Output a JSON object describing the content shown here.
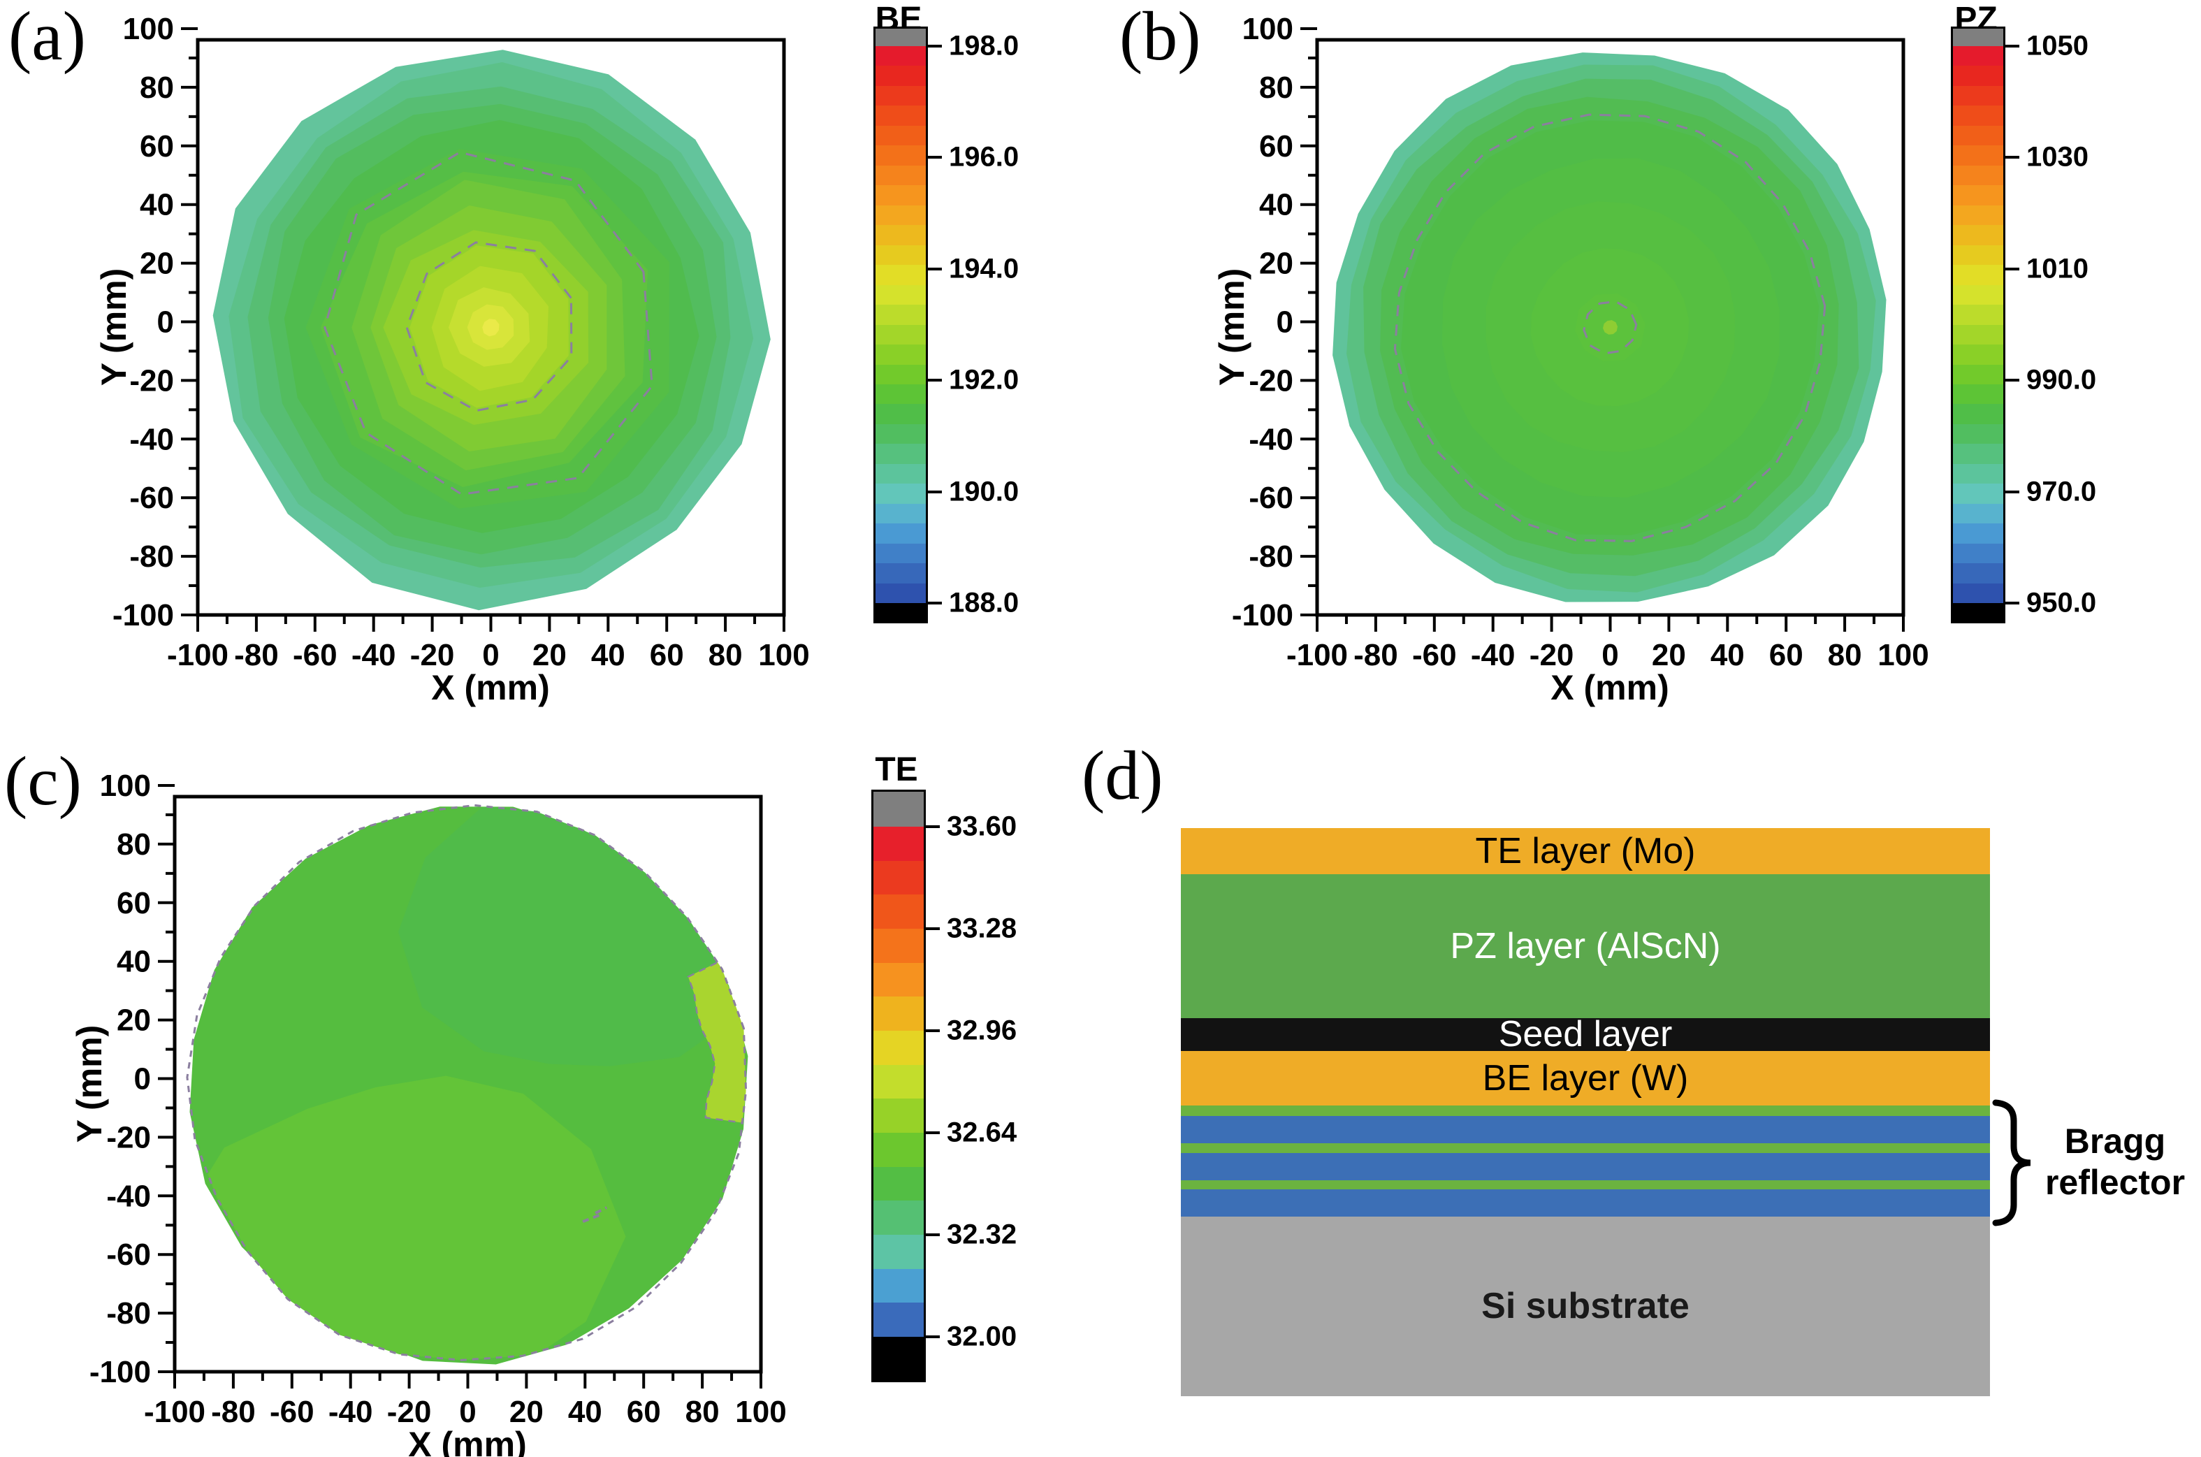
{
  "chart_data": [
    {
      "id": "a",
      "label": "(a)",
      "type": "contour",
      "axis": {
        "x_label": "X (mm)",
        "y_label": "Y (mm)",
        "min": -100,
        "max": 100,
        "major_step": 20,
        "minor_step": 10
      },
      "colorbar": {
        "title": "BE",
        "tick_labels": [
          "198.0",
          "196.0",
          "194.0",
          "192.0",
          "190.0",
          "188.0"
        ],
        "range": [
          188.0,
          198.0
        ],
        "over_color": "#7f7f7f",
        "under_color": "#000000",
        "band_colors": [
          "#E51B2C",
          "#E8271F",
          "#EC3A1C",
          "#EF4D19",
          "#F15F18",
          "#F37119",
          "#F5831C",
          "#F6951E",
          "#F3A71F",
          "#EDB91E",
          "#E6CB1F",
          "#E2DD26",
          "#D5E22C",
          "#BCDC2B",
          "#A3D629",
          "#8AD027",
          "#72CA2B",
          "#5DC436",
          "#50BE48",
          "#51BE60",
          "#56C17E",
          "#5CC49C",
          "#62C6BA",
          "#58B3CE",
          "#4A9AD3",
          "#4080C8",
          "#3768BA",
          "#2E52AE"
        ]
      },
      "wafer": {
        "style": "polygonal",
        "edge_r_mm": 95,
        "rings": [
          {
            "r_mm": 95,
            "value": 190.6,
            "color": "#63C49C"
          },
          {
            "r_mm": 89,
            "value": 191.0,
            "color": "#5CC189"
          },
          {
            "r_mm": 83,
            "value": 191.4,
            "color": "#57BE73"
          },
          {
            "r_mm": 77,
            "value": 191.8,
            "color": "#53BD5F"
          },
          {
            "r_mm": 70,
            "value": 192.2,
            "color": "#50BC4E"
          },
          {
            "r_mm": 63,
            "value": 192.6,
            "color": "#55BE46"
          },
          {
            "r_mm": 56,
            "value": 193.0,
            "color": "#60C23F"
          },
          {
            "r_mm": 49,
            "value": 193.3,
            "color": "#6FC63A"
          },
          {
            "r_mm": 42,
            "value": 193.6,
            "color": "#80CB33"
          },
          {
            "r_mm": 35,
            "value": 193.9,
            "color": "#92D02D"
          },
          {
            "r_mm": 28,
            "value": 194.2,
            "color": "#A4D529"
          },
          {
            "r_mm": 21,
            "value": 194.5,
            "color": "#B5DA2B"
          },
          {
            "r_mm": 14,
            "value": 194.8,
            "color": "#C7E032"
          },
          {
            "r_mm": 8,
            "value": 195.1,
            "color": "#D8E53A"
          },
          {
            "r_mm": 3,
            "value": 195.4,
            "color": "#EAEA49"
          }
        ],
        "dashed_contours_r_mm": [
          58,
          29
        ]
      }
    },
    {
      "id": "b",
      "label": "(b)",
      "type": "contour",
      "axis": {
        "x_label": "X (mm)",
        "y_label": "Y (mm)",
        "min": -100,
        "max": 100,
        "major_step": 20,
        "minor_step": 10
      },
      "colorbar": {
        "title": "PZ",
        "tick_labels": [
          "1050",
          "1030",
          "1010",
          "990.0",
          "970.0",
          "950.0"
        ],
        "range": [
          950.0,
          1050.0
        ],
        "over_color": "#7f7f7f",
        "under_color": "#000000",
        "band_colors": [
          "#E51B2C",
          "#E8271F",
          "#EC3A1C",
          "#EF4D19",
          "#F15F18",
          "#F37119",
          "#F5831C",
          "#F6951E",
          "#F3A71F",
          "#EDB91E",
          "#E6CB1F",
          "#E2DD26",
          "#D5E22C",
          "#BCDC2B",
          "#A3D629",
          "#8AD027",
          "#72CA2B",
          "#5DC436",
          "#50BE48",
          "#51BE60",
          "#56C17E",
          "#5CC49C",
          "#62C6BA",
          "#58B3CE",
          "#4A9AD3",
          "#4080C8",
          "#3768BA",
          "#2E52AE"
        ]
      },
      "wafer": {
        "style": "smooth",
        "edge_r_mm": 95,
        "rings": [
          {
            "r_mm": 95,
            "value": 976,
            "color": "#60C39B"
          },
          {
            "r_mm": 90,
            "value": 981,
            "color": "#5AC081"
          },
          {
            "r_mm": 85,
            "value": 986,
            "color": "#55BD66"
          },
          {
            "r_mm": 79,
            "value": 991,
            "color": "#52BC52"
          },
          {
            "r_mm": 71,
            "value": 995,
            "color": "#50BC48"
          },
          {
            "r_mm": 58,
            "value": 997,
            "color": "#53BE44"
          },
          {
            "r_mm": 43,
            "value": 998,
            "color": "#56BF41"
          },
          {
            "r_mm": 27,
            "value": 999,
            "color": "#59C13E"
          },
          {
            "r_mm": 12,
            "value": 1000,
            "color": "#5CC23C"
          },
          {
            "r_mm": 2.5,
            "value": 1002,
            "color": "#8FCD33"
          }
        ],
        "dashed_contours_r_mm": [
          73,
          9
        ]
      }
    },
    {
      "id": "c",
      "label": "(c)",
      "type": "contour",
      "axis": {
        "x_label": "X (mm)",
        "y_label": "Y (mm)",
        "min": -100,
        "max": 100,
        "major_step": 20,
        "minor_step": 10
      },
      "colorbar": {
        "title": "TE",
        "tick_labels": [
          "33.60",
          "33.28",
          "32.96",
          "32.64",
          "32.32",
          "32.00"
        ],
        "range": [
          32.0,
          33.6
        ],
        "over_color": "#7f7f7f",
        "under_color": "#000000",
        "band_colors": [
          "#E7202B",
          "#EB3A1F",
          "#F0561A",
          "#F4731B",
          "#F6921F",
          "#EFB31E",
          "#E5D424",
          "#C3DD2C",
          "#97D228",
          "#6CC72E",
          "#53BE44",
          "#55C073",
          "#5DC4A5",
          "#4BA0D2",
          "#3A6BBB"
        ]
      },
      "wafer": {
        "style": "smooth",
        "edge_r_mm": 95,
        "dashed_edge": true,
        "rings": [
          {
            "r_mm": 95,
            "value": 32.8,
            "color": "#55BD3F"
          }
        ],
        "patches": [
          {
            "shape": "lobe",
            "cx_mm": -20,
            "cy_mm": -52,
            "rx_mm": 80,
            "ry_mm": 52,
            "value": 32.9,
            "color": "#63C438"
          },
          {
            "shape": "lobe",
            "cx_mm": 38,
            "cy_mm": 52,
            "rx_mm": 62,
            "ry_mm": 48,
            "value": 32.75,
            "color": "#50BB49"
          },
          {
            "shape": "edge-sliver",
            "angle_start_deg": -8,
            "angle_end_deg": 26,
            "r_inner_mm": 83,
            "value": 33.1,
            "color": "#A9D52F"
          }
        ],
        "artifact_dash_at_mm": [
          44,
          -44
        ],
        "dashed_contours_r_mm": []
      }
    },
    {
      "id": "d",
      "label": "(d)",
      "type": "layer-stack",
      "layers": [
        {
          "name": "TE layer (Mo)",
          "color": "#EFAC27",
          "text_color": "#000000",
          "h_pct": 8.1,
          "bold": false
        },
        {
          "name": "PZ layer (AlScN)",
          "color": "#5CA94D",
          "text_color": "#FFFFFF",
          "h_pct": 25.3,
          "bold": false
        },
        {
          "name": "Seed layer",
          "color": "#121212",
          "text_color": "#FFFFFF",
          "h_pct": 5.8,
          "bold": false
        },
        {
          "name": "BE layer (W)",
          "color": "#EFAC27",
          "text_color": "#000000",
          "h_pct": 9.6,
          "bold": false
        },
        {
          "name": "",
          "color": "#6BB340",
          "text_color": "#000000",
          "h_pct": 1.85,
          "bold": false
        },
        {
          "name": "",
          "color": "#3C6FB6",
          "text_color": "#000000",
          "h_pct": 4.8,
          "bold": false
        },
        {
          "name": "",
          "color": "#6BB340",
          "text_color": "#000000",
          "h_pct": 1.7,
          "bold": false
        },
        {
          "name": "",
          "color": "#3C6FB6",
          "text_color": "#000000",
          "h_pct": 4.8,
          "bold": false
        },
        {
          "name": "",
          "color": "#6BB340",
          "text_color": "#000000",
          "h_pct": 1.6,
          "bold": false
        },
        {
          "name": "",
          "color": "#3C6FB6",
          "text_color": "#000000",
          "h_pct": 4.8,
          "bold": false
        },
        {
          "name": "Si substrate",
          "color": "#A7A7A7",
          "text_color": "#1A1A1A",
          "h_pct": 31.65,
          "bold": true
        }
      ],
      "brace_label": "Bragg reflector"
    }
  ],
  "style_colors": {
    "dashed_contour": "#8B7F9F",
    "axis": "#000000"
  }
}
